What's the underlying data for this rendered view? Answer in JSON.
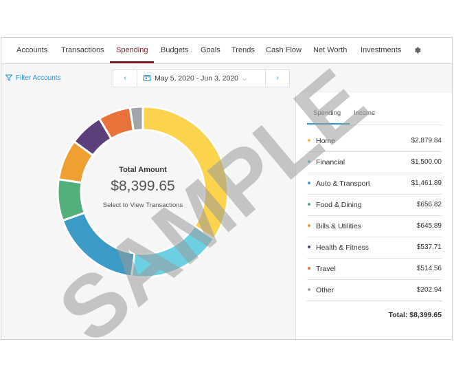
{
  "nav": {
    "items": [
      {
        "label": "Accounts",
        "active": false
      },
      {
        "label": "Transactions",
        "active": false
      },
      {
        "label": "Spending",
        "active": true
      },
      {
        "label": "Budgets",
        "active": false
      },
      {
        "label": "Goals",
        "active": false
      },
      {
        "label": "Trends",
        "active": false
      },
      {
        "label": "Cash Flow",
        "active": false
      },
      {
        "label": "Net Worth",
        "active": false
      },
      {
        "label": "Investments",
        "active": false
      }
    ],
    "settings_icon": "gear-icon"
  },
  "toolbar": {
    "filter_label": "Filter Accounts",
    "filter_icon": "funnel-icon",
    "prev_label": "‹",
    "next_label": "›",
    "date_range": "May 5, 2020 - Jun 3, 2020",
    "calendar_icon": "calendar-icon"
  },
  "chart": {
    "center_title": "Total Amount",
    "center_amount": "$8,399.65",
    "center_link": "Select to View Transactions"
  },
  "chart_data": {
    "type": "pie",
    "donut": true,
    "categories": [
      "Home",
      "Financial",
      "Auto & Transport",
      "Food & Dining",
      "Bills & Utilities",
      "Health & Fitness",
      "Travel",
      "Other"
    ],
    "values": [
      2879.84,
      1500.0,
      1461.89,
      656.82,
      645.89,
      537.71,
      514.56,
      202.94
    ],
    "colors": [
      "#fbd34d",
      "#6ccfe2",
      "#3b9bc6",
      "#52b07c",
      "#f0a030",
      "#5a3f7a",
      "#e8733a",
      "#a0a4ab"
    ],
    "total": 8399.65
  },
  "panel": {
    "tabs": [
      {
        "label": "Spending",
        "active": true
      },
      {
        "label": "Income",
        "active": false
      }
    ],
    "rows": [
      {
        "label": "Home",
        "amount": "$2,879.84",
        "color": "#f5b83d"
      },
      {
        "label": "Financial",
        "amount": "$1,500.00",
        "color": "#5ab5c9"
      },
      {
        "label": "Auto & Transport",
        "amount": "$1,461.89",
        "color": "#3b9bc6"
      },
      {
        "label": "Food & Dining",
        "amount": "$656.82",
        "color": "#52b07c"
      },
      {
        "label": "Bills & Utilities",
        "amount": "$645.89",
        "color": "#f0a030"
      },
      {
        "label": "Health & Fitness",
        "amount": "$537.71",
        "color": "#5a3f7a"
      },
      {
        "label": "Travel",
        "amount": "$514.56",
        "color": "#e8733a"
      },
      {
        "label": "Other",
        "amount": "$202.94",
        "color": "#a0a4ab"
      }
    ],
    "total_label": "Total: $8,399.65"
  },
  "watermark": {
    "text": "SAMPLE",
    "color": "#9a9a9a"
  }
}
